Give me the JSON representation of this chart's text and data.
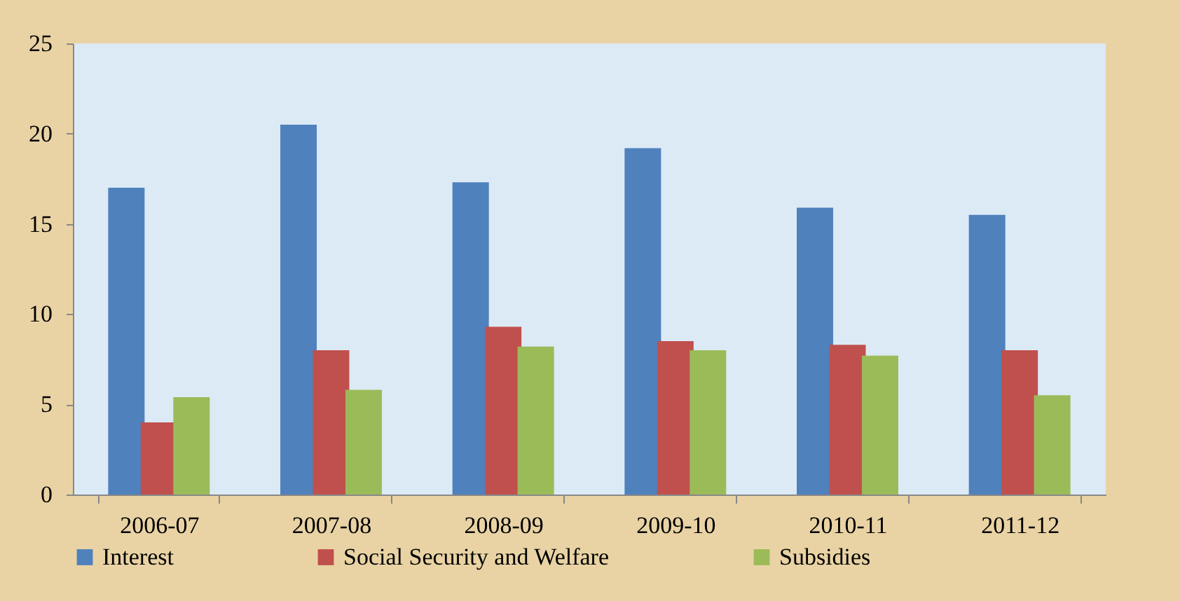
{
  "chart_data": {
    "type": "bar",
    "categories": [
      "2006-07",
      "2007-08",
      "2008-09",
      "2009-10",
      "2010-11",
      "2011-12"
    ],
    "series": [
      {
        "name": "Interest",
        "color": "#4f81bd",
        "values": [
          17.0,
          20.5,
          17.3,
          19.2,
          15.9,
          15.5
        ]
      },
      {
        "name": "Social Security and Welfare",
        "color": "#c0504d",
        "values": [
          4.0,
          8.0,
          9.3,
          8.5,
          8.3,
          8.0
        ]
      },
      {
        "name": "Subsidies",
        "color": "#9bbb59",
        "values": [
          5.4,
          5.8,
          8.2,
          8.0,
          7.7,
          5.5
        ]
      }
    ],
    "ylim": [
      0,
      25
    ],
    "yticks": [
      0,
      5,
      10,
      15,
      20,
      25
    ],
    "grid": false,
    "legend": "bottom"
  }
}
